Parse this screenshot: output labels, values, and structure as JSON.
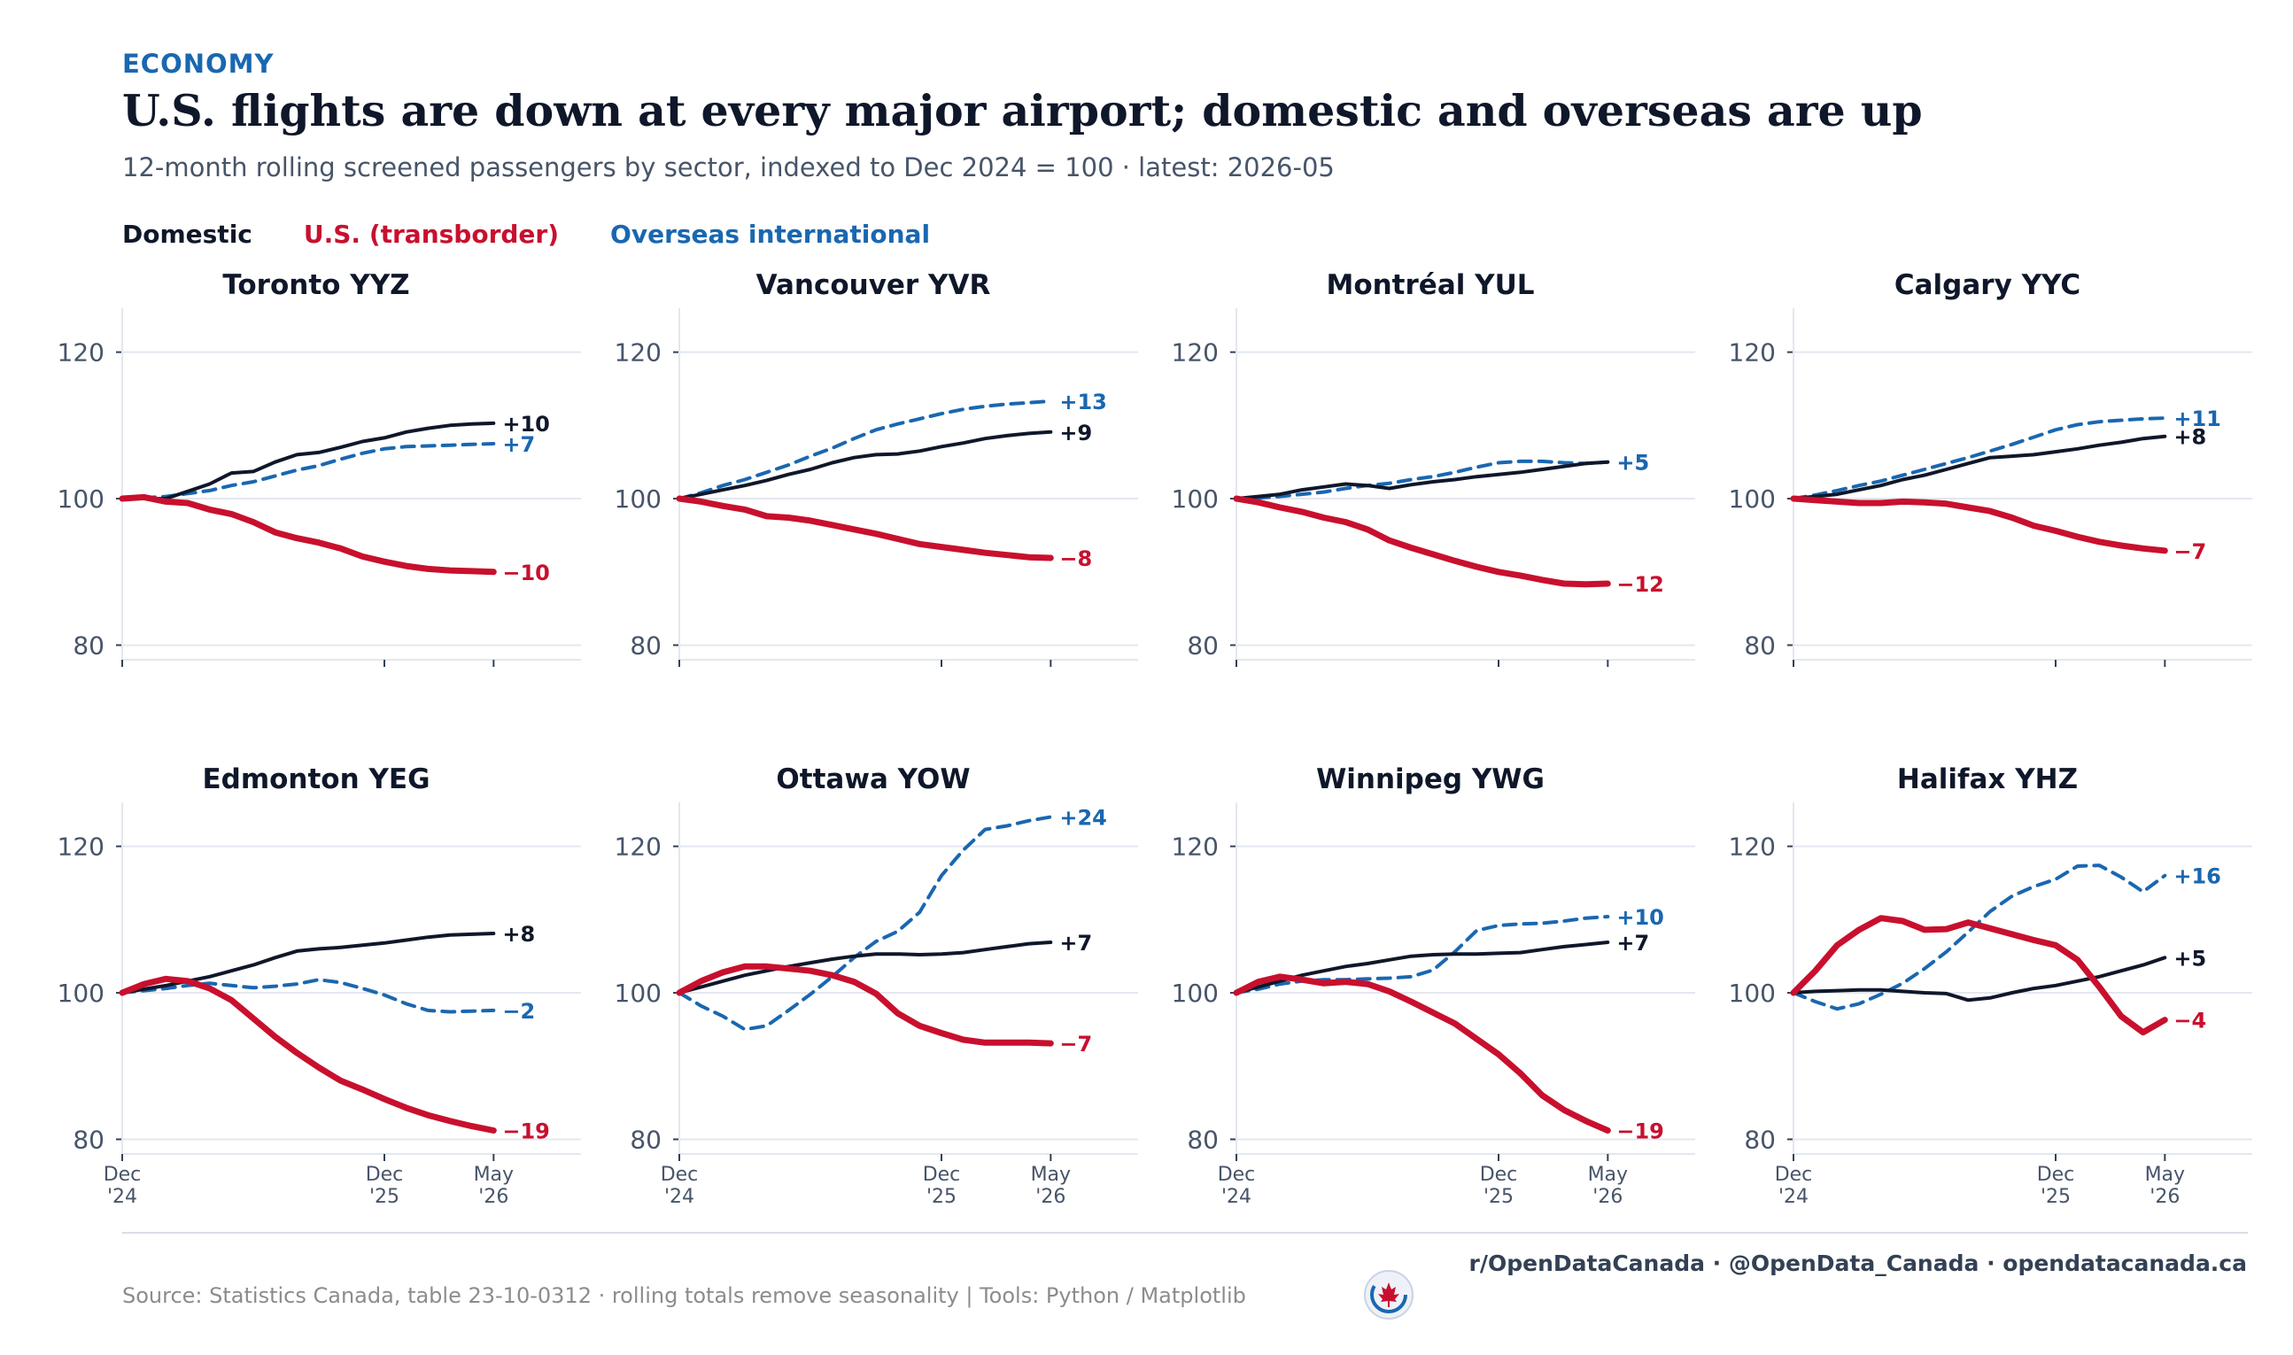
{
  "header": {
    "kicker": "ECONOMY",
    "title": "U.S. flights are down at every major airport; domestic and overseas are up",
    "subtitle": "12-month rolling screened passengers by sector, indexed to Dec 2024 = 100  ·  latest: 2026-05"
  },
  "legend": {
    "domestic": "Domestic",
    "us": "U.S. (transborder)",
    "overseas": "Overseas international"
  },
  "colors": {
    "domestic": "#0f172a",
    "us": "#c8102e",
    "overseas": "#1a67b0",
    "grid": "#e3e7ef"
  },
  "footer": {
    "credits": "r/OpenDataCanada  ·  @OpenData_Canada  ·  opendatacanada.ca",
    "source": "Source: Statistics Canada, table 23-10-0312  ·  rolling totals remove seasonality  |  Tools: Python / Matplotlib",
    "logo_icon": "canada-maple-leaf-icon"
  },
  "chart_data": {
    "type": "line",
    "y_ticks": [
      80,
      100,
      120
    ],
    "y_range": [
      78,
      126
    ],
    "x_range": [
      "2024-12",
      "2026-09"
    ],
    "x_ticks": [
      {
        "date": "2024-12",
        "line1": "Dec",
        "line2": "'24"
      },
      {
        "date": "2025-12",
        "line1": "Dec",
        "line2": "'25"
      },
      {
        "date": "2026-05",
        "line1": "May",
        "line2": "'26"
      }
    ],
    "grid": true,
    "months": [
      "2024-12",
      "2025-01",
      "2025-02",
      "2025-03",
      "2025-04",
      "2025-05",
      "2025-06",
      "2025-07",
      "2025-08",
      "2025-09",
      "2025-10",
      "2025-11",
      "2025-12",
      "2026-01",
      "2026-02",
      "2026-03",
      "2026-04",
      "2026-05"
    ],
    "panels": [
      {
        "name": "Toronto  YYZ",
        "domestic": [
          100,
          100,
          100,
          101,
          102,
          103.5,
          103.7,
          105,
          106,
          106.3,
          107,
          107.8,
          108.3,
          109.1,
          109.6,
          110,
          110.2,
          110.3
        ],
        "us": [
          100,
          100.2,
          99.6,
          99.4,
          98.5,
          97.9,
          96.8,
          95.4,
          94.6,
          94,
          93.2,
          92.1,
          91.4,
          90.8,
          90.4,
          90.2,
          90.1,
          90
        ],
        "overseas": [
          100,
          100.1,
          100.3,
          100.7,
          101.1,
          101.8,
          102.3,
          103.1,
          103.9,
          104.5,
          105.4,
          106.2,
          106.8,
          107.1,
          107.2,
          107.3,
          107.4,
          107.5
        ],
        "labels": {
          "domestic": "+10",
          "us": "−10",
          "overseas": "+7"
        }
      },
      {
        "name": "Vancouver  YVR",
        "domestic": [
          100,
          100.6,
          101.2,
          101.8,
          102.5,
          103.3,
          104,
          104.9,
          105.6,
          106,
          106.1,
          106.5,
          107.1,
          107.6,
          108.2,
          108.6,
          108.9,
          109.1
        ],
        "us": [
          100,
          99.6,
          99,
          98.5,
          97.6,
          97.4,
          97,
          96.4,
          95.8,
          95.2,
          94.5,
          93.8,
          93.4,
          93,
          92.6,
          92.3,
          92,
          91.9
        ],
        "overseas": [
          100,
          100.8,
          101.8,
          102.6,
          103.6,
          104.6,
          105.8,
          106.9,
          108.2,
          109.4,
          110.2,
          110.9,
          111.6,
          112.2,
          112.6,
          112.9,
          113.1,
          113.3
        ],
        "labels": {
          "domestic": "+9",
          "us": "−8",
          "overseas": "+13"
        }
      },
      {
        "name": "Montréal  YUL",
        "domestic": [
          100,
          100.3,
          100.6,
          101.2,
          101.6,
          102,
          101.8,
          101.4,
          101.9,
          102.3,
          102.6,
          103,
          103.3,
          103.6,
          104,
          104.4,
          104.8,
          105
        ],
        "us": [
          100,
          99.5,
          98.8,
          98.2,
          97.4,
          96.8,
          95.8,
          94.3,
          93.3,
          92.4,
          91.5,
          90.7,
          90,
          89.5,
          88.9,
          88.4,
          88.3,
          88.4
        ],
        "overseas": [
          100,
          100.1,
          100.3,
          100.6,
          100.9,
          101.4,
          101.8,
          102.1,
          102.6,
          103,
          103.6,
          104.3,
          104.9,
          105.1,
          105.1,
          104.9,
          104.8,
          105
        ],
        "labels": {
          "domestic": "+5",
          "us": "−12",
          "overseas": "+5"
        }
      },
      {
        "name": "Calgary  YYC",
        "domestic": [
          100,
          100.3,
          100.6,
          101.2,
          101.8,
          102.6,
          103.2,
          104,
          104.8,
          105.6,
          105.8,
          106,
          106.4,
          106.8,
          107.3,
          107.7,
          108.2,
          108.5
        ],
        "us": [
          100,
          99.8,
          99.6,
          99.4,
          99.4,
          99.6,
          99.5,
          99.3,
          98.8,
          98.3,
          97.4,
          96.3,
          95.6,
          94.8,
          94.1,
          93.6,
          93.2,
          92.9
        ],
        "overseas": [
          100,
          100.5,
          101.1,
          101.8,
          102.4,
          103.2,
          104,
          104.8,
          105.6,
          106.5,
          107.4,
          108.4,
          109.4,
          110.1,
          110.5,
          110.7,
          110.9,
          111
        ],
        "labels": {
          "domestic": "+8",
          "us": "−7",
          "overseas": "+11"
        }
      },
      {
        "name": "Edmonton  YEG",
        "domestic": [
          100,
          100.5,
          101,
          101.6,
          102.2,
          103,
          103.8,
          104.8,
          105.7,
          106,
          106.2,
          106.5,
          106.8,
          107.2,
          107.6,
          107.9,
          108,
          108.1
        ],
        "us": [
          100,
          101.2,
          101.9,
          101.6,
          100.6,
          99,
          96.5,
          94,
          91.8,
          89.8,
          88,
          86.8,
          85.5,
          84.3,
          83.3,
          82.5,
          81.8,
          81.2
        ],
        "overseas": [
          100,
          100.3,
          100.6,
          101,
          101.3,
          101,
          100.7,
          100.9,
          101.2,
          101.8,
          101.4,
          100.6,
          99.7,
          98.5,
          97.6,
          97.4,
          97.5,
          97.6
        ],
        "labels": {
          "domestic": "+8",
          "us": "−19",
          "overseas": "−2"
        }
      },
      {
        "name": "Ottawa  YOW",
        "domestic": [
          100,
          100.8,
          101.6,
          102.4,
          103,
          103.6,
          104.1,
          104.6,
          105,
          105.3,
          105.3,
          105.2,
          105.3,
          105.5,
          105.9,
          106.3,
          106.7,
          106.9
        ],
        "us": [
          100,
          101.6,
          102.8,
          103.6,
          103.6,
          103.3,
          103,
          102.4,
          101.5,
          99.9,
          97.2,
          95.5,
          94.5,
          93.6,
          93.2,
          93.2,
          93.2,
          93.1
        ],
        "overseas": [
          100,
          98.2,
          96.8,
          95,
          95.5,
          97.6,
          99.8,
          102.2,
          104.8,
          107,
          108.4,
          111,
          116,
          119.5,
          122.3,
          122.8,
          123.5,
          124
        ],
        "labels": {
          "domestic": "+7",
          "us": "−7",
          "overseas": "+24"
        }
      },
      {
        "name": "Winnipeg  YWG",
        "domestic": [
          100,
          100.8,
          101.6,
          102.4,
          103,
          103.6,
          104,
          104.5,
          105,
          105.2,
          105.3,
          105.3,
          105.4,
          105.5,
          105.9,
          106.3,
          106.6,
          106.9
        ],
        "us": [
          100,
          101.5,
          102.2,
          101.8,
          101.3,
          101.5,
          101.2,
          100.2,
          98.8,
          97.3,
          95.8,
          93.7,
          91.6,
          89,
          86,
          84,
          82.5,
          81.2
        ],
        "overseas": [
          100,
          100.5,
          101.2,
          101.6,
          101.8,
          101.8,
          101.9,
          102,
          102.2,
          103.1,
          105.6,
          108.5,
          109.2,
          109.4,
          109.5,
          109.8,
          110.2,
          110.4
        ],
        "labels": {
          "domestic": "+7",
          "us": "−19",
          "overseas": "+10"
        }
      },
      {
        "name": "Halifax  YHZ",
        "domestic": [
          100,
          100.2,
          100.3,
          100.4,
          100.4,
          100.2,
          100,
          99.9,
          99,
          99.3,
          100,
          100.6,
          101,
          101.6,
          102.2,
          103,
          103.8,
          104.8
        ],
        "us": [
          100,
          103,
          106.5,
          108.6,
          110.2,
          109.8,
          108.6,
          108.7,
          109.6,
          108.8,
          108,
          107.2,
          106.5,
          104.5,
          100.8,
          96.8,
          94.6,
          96.3
        ],
        "overseas": [
          100,
          98.8,
          97.8,
          98.5,
          99.8,
          101.3,
          103.3,
          105.6,
          108.3,
          111.1,
          113.2,
          114.5,
          115.5,
          117.3,
          117.4,
          115.8,
          113.8,
          116
        ],
        "labels": {
          "domestic": "+5",
          "us": "−4",
          "overseas": "+16"
        }
      }
    ]
  }
}
